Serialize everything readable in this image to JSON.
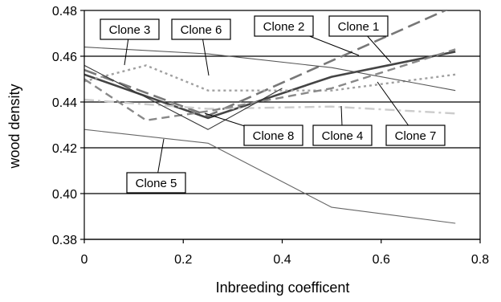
{
  "chart_data": {
    "type": "line",
    "xlabel": "Inbreeding coefficent",
    "ylabel": "wood density",
    "xlim": [
      0,
      0.8
    ],
    "ylim": [
      0.38,
      0.48
    ],
    "x_ticks": [
      "0",
      "0.2",
      "0.4",
      "0.6",
      "0.8"
    ],
    "y_ticks": [
      "0.38",
      "0.40",
      "0.42",
      "0.44",
      "0.46",
      "0.48"
    ],
    "grid": "horizontal",
    "legend": "callout labels",
    "series": [
      {
        "name": "Clone 1",
        "color": "#444444",
        "dash": "solid",
        "width": 2.6,
        "points": [
          [
            0,
            0.452
          ],
          [
            0.25,
            0.433
          ],
          [
            0.5,
            0.451
          ],
          [
            0.75,
            0.462
          ]
        ]
      },
      {
        "name": "Clone 2",
        "color": "#777777",
        "dash": "longdash",
        "width": 2.6,
        "points": [
          [
            0,
            0.454
          ],
          [
            0.25,
            0.434
          ],
          [
            0.5,
            0.458
          ],
          [
            0.75,
            0.482
          ]
        ]
      },
      {
        "name": "Clone 3",
        "color": "#a0a0a0",
        "dash": "dotted",
        "width": 2.4,
        "points": [
          [
            0,
            0.449
          ],
          [
            0.125,
            0.456
          ],
          [
            0.25,
            0.445
          ],
          [
            0.5,
            0.445
          ],
          [
            0.75,
            0.452
          ]
        ]
      },
      {
        "name": "Clone 4",
        "color": "#cccccc",
        "dash": "dashdot",
        "width": 2.4,
        "points": [
          [
            0,
            0.441
          ],
          [
            0.25,
            0.437
          ],
          [
            0.5,
            0.438
          ],
          [
            0.75,
            0.435
          ]
        ]
      },
      {
        "name": "Clone 5",
        "color": "#666666",
        "dash": "solid",
        "width": 1.1,
        "points": [
          [
            0,
            0.428
          ],
          [
            0.25,
            0.422
          ],
          [
            0.5,
            0.394
          ],
          [
            0.75,
            0.387
          ]
        ]
      },
      {
        "name": "Clone 6",
        "color": "#555555",
        "dash": "solid",
        "width": 1.1,
        "points": [
          [
            0,
            0.464
          ],
          [
            0.25,
            0.461
          ],
          [
            0.5,
            0.455
          ],
          [
            0.75,
            0.445
          ]
        ]
      },
      {
        "name": "Clone 7",
        "color": "#888888",
        "dash": "dashed",
        "width": 2.4,
        "points": [
          [
            0,
            0.45
          ],
          [
            0.125,
            0.432
          ],
          [
            0.25,
            0.436
          ],
          [
            0.5,
            0.446
          ],
          [
            0.75,
            0.463
          ]
        ]
      },
      {
        "name": "Clone 8",
        "color": "#333333",
        "dash": "solid",
        "width": 1.1,
        "points": [
          [
            0,
            0.456
          ],
          [
            0.25,
            0.428
          ],
          [
            0.4,
            0.446
          ]
        ]
      }
    ],
    "annotations": [
      {
        "text": "Clone 1",
        "series": "Clone 1"
      },
      {
        "text": "Clone 2",
        "series": "Clone 2"
      },
      {
        "text": "Clone 3",
        "series": "Clone 3"
      },
      {
        "text": "Clone 4",
        "series": "Clone 4"
      },
      {
        "text": "Clone 5",
        "series": "Clone 5"
      },
      {
        "text": "Clone 6",
        "series": "Clone 6"
      },
      {
        "text": "Clone 7",
        "series": "Clone 7"
      },
      {
        "text": "Clone 8",
        "series": "Clone 8"
      }
    ]
  }
}
